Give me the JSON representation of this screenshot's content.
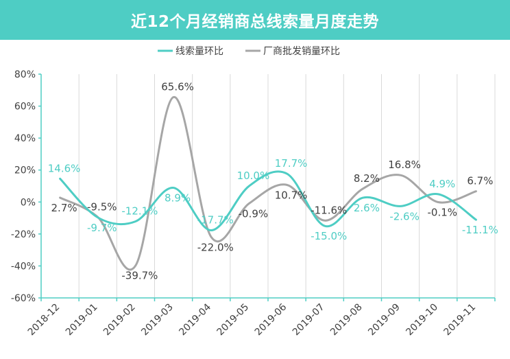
{
  "chart_data": {
    "type": "line",
    "title": "近12个月经销商总线索量月度走势",
    "xlabel": "",
    "ylabel": "",
    "categories": [
      "2018-12",
      "2019-01",
      "2019-02",
      "2019-03",
      "2019-04",
      "2019-05",
      "2019-06",
      "2019-07",
      "2019-08",
      "2019-09",
      "2019-10",
      "2019-11"
    ],
    "ylim": [
      -60,
      80
    ],
    "yticks": [
      "80%",
      "60%",
      "40%",
      "20%",
      "0%",
      "-20%",
      "-40%",
      "-60%"
    ],
    "legend_position": "top-center",
    "grid": "vertical",
    "series": [
      {
        "name": "线索量环比",
        "color": "#4ECDC4",
        "values": [
          14.6,
          -9.7,
          -12.1,
          8.9,
          -17.7,
          10.0,
          17.7,
          -15.0,
          2.6,
          -2.6,
          4.9,
          -11.1
        ],
        "labels": [
          "14.6%",
          "-9.7%",
          "-12.1%",
          "8.9%",
          "-17.7%",
          "10.0%",
          "17.7%",
          "-15.0%",
          "2.6%",
          "-2.6%",
          "4.9%",
          "-11.1%"
        ]
      },
      {
        "name": "厂商批发销量环比",
        "color": "#A6A6A6",
        "values": [
          2.7,
          -9.5,
          -39.7,
          65.6,
          -22.0,
          -0.9,
          10.7,
          -11.6,
          8.2,
          16.8,
          -0.1,
          6.7
        ],
        "labels": [
          "2.7%",
          "-9.5%",
          "-39.7%",
          "65.6%",
          "-22.0%",
          "-0.9%",
          "10.7%",
          "-11.6%",
          "8.2%",
          "16.8%",
          "-0.1%",
          "6.7%"
        ]
      }
    ]
  }
}
